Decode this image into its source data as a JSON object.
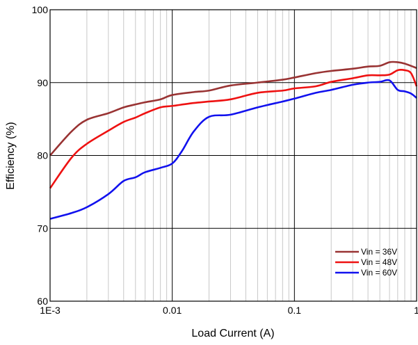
{
  "chart_data": {
    "type": "line",
    "title": "",
    "xlabel": "Load Current (A)",
    "ylabel": "Efficiency (%)",
    "xscale": "log",
    "xlim": [
      0.001,
      1
    ],
    "ylim": [
      60,
      100
    ],
    "grid": true,
    "legend_position": "bottom-right",
    "x_ticks": [
      {
        "value": 0.001,
        "label": "1E-3"
      },
      {
        "value": 0.01,
        "label": "0.01"
      },
      {
        "value": 0.1,
        "label": "0.1"
      },
      {
        "value": 1,
        "label": "1"
      }
    ],
    "y_ticks": [
      {
        "value": 60,
        "label": "60"
      },
      {
        "value": 70,
        "label": "70"
      },
      {
        "value": 80,
        "label": "80"
      },
      {
        "value": 90,
        "label": "90"
      },
      {
        "value": 100,
        "label": "100"
      }
    ],
    "series": [
      {
        "name": "Vin = 36V",
        "color": "#993333",
        "points": [
          [
            0.001,
            80.0
          ],
          [
            0.0015,
            83.3
          ],
          [
            0.002,
            84.9
          ],
          [
            0.003,
            85.8
          ],
          [
            0.004,
            86.6
          ],
          [
            0.005,
            87.0
          ],
          [
            0.006,
            87.3
          ],
          [
            0.008,
            87.7
          ],
          [
            0.01,
            88.3
          ],
          [
            0.015,
            88.7
          ],
          [
            0.02,
            88.9
          ],
          [
            0.03,
            89.6
          ],
          [
            0.05,
            90.0
          ],
          [
            0.08,
            90.4
          ],
          [
            0.1,
            90.7
          ],
          [
            0.15,
            91.3
          ],
          [
            0.2,
            91.6
          ],
          [
            0.3,
            91.9
          ],
          [
            0.4,
            92.2
          ],
          [
            0.5,
            92.3
          ],
          [
            0.6,
            92.8
          ],
          [
            0.7,
            92.8
          ],
          [
            0.8,
            92.6
          ],
          [
            1.0,
            92.0
          ]
        ]
      },
      {
        "name": "Vin = 48V",
        "color": "#ee1111",
        "points": [
          [
            0.001,
            75.5
          ],
          [
            0.0015,
            79.7
          ],
          [
            0.002,
            81.6
          ],
          [
            0.003,
            83.4
          ],
          [
            0.004,
            84.6
          ],
          [
            0.005,
            85.2
          ],
          [
            0.006,
            85.8
          ],
          [
            0.008,
            86.6
          ],
          [
            0.01,
            86.8
          ],
          [
            0.015,
            87.2
          ],
          [
            0.02,
            87.4
          ],
          [
            0.03,
            87.7
          ],
          [
            0.05,
            88.6
          ],
          [
            0.08,
            88.9
          ],
          [
            0.1,
            89.2
          ],
          [
            0.15,
            89.5
          ],
          [
            0.2,
            90.1
          ],
          [
            0.3,
            90.6
          ],
          [
            0.4,
            91.0
          ],
          [
            0.5,
            91.0
          ],
          [
            0.6,
            91.1
          ],
          [
            0.7,
            91.7
          ],
          [
            0.8,
            91.7
          ],
          [
            0.9,
            91.3
          ],
          [
            1.0,
            89.5
          ]
        ]
      },
      {
        "name": "Vin = 60V",
        "color": "#1111ee",
        "points": [
          [
            0.001,
            71.3
          ],
          [
            0.0015,
            72.1
          ],
          [
            0.002,
            72.9
          ],
          [
            0.003,
            74.7
          ],
          [
            0.004,
            76.5
          ],
          [
            0.005,
            77.0
          ],
          [
            0.006,
            77.7
          ],
          [
            0.008,
            78.3
          ],
          [
            0.01,
            78.9
          ],
          [
            0.012,
            80.6
          ],
          [
            0.015,
            83.3
          ],
          [
            0.02,
            85.3
          ],
          [
            0.03,
            85.6
          ],
          [
            0.05,
            86.6
          ],
          [
            0.08,
            87.4
          ],
          [
            0.1,
            87.8
          ],
          [
            0.15,
            88.6
          ],
          [
            0.2,
            89.0
          ],
          [
            0.3,
            89.7
          ],
          [
            0.4,
            90.0
          ],
          [
            0.5,
            90.1
          ],
          [
            0.6,
            90.3
          ],
          [
            0.7,
            89.0
          ],
          [
            0.8,
            88.8
          ],
          [
            0.9,
            88.5
          ],
          [
            1.0,
            87.9
          ]
        ]
      }
    ]
  }
}
